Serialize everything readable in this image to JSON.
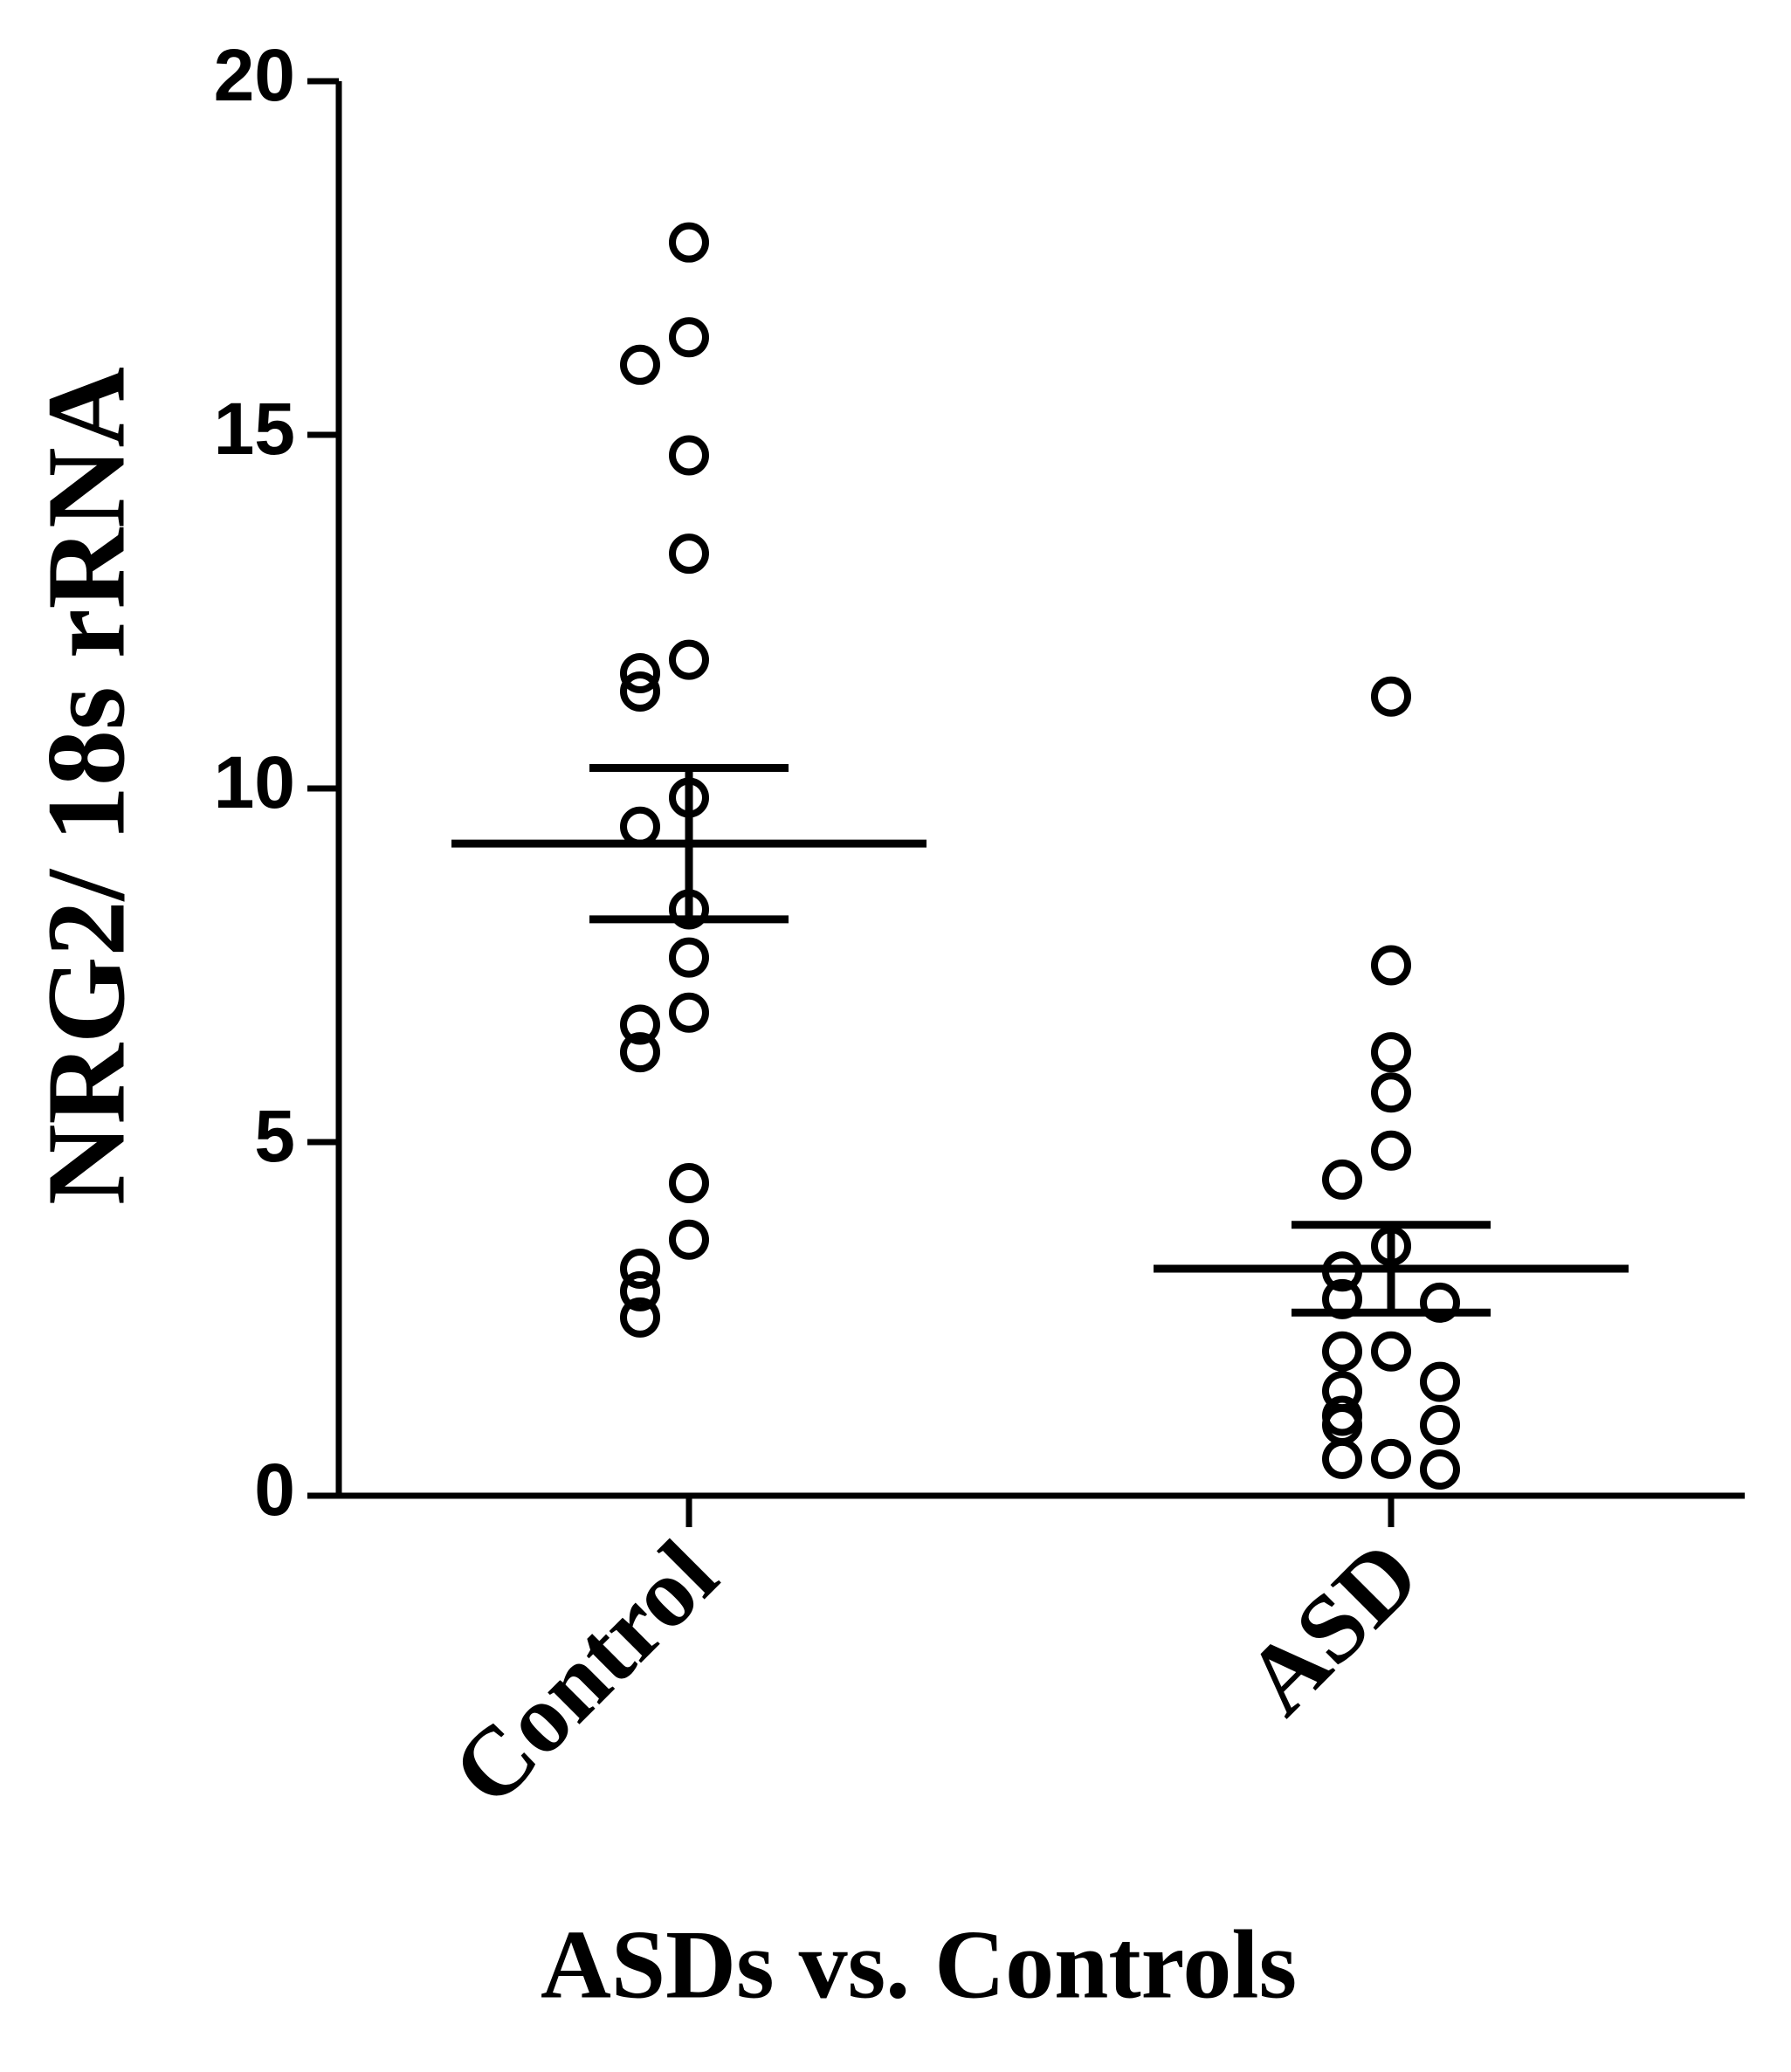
{
  "chart_data": {
    "type": "dot",
    "x_label": "ASDs vs. Controls",
    "y_label": "NRG2/ 18s rRNA",
    "categories": [
      "Control",
      "ASD"
    ],
    "values": [
      [
        17.72,
        16.38,
        15.99,
        14.71,
        13.32,
        11.82,
        11.63,
        11.37,
        9.87,
        9.46,
        8.29,
        7.61,
        6.83,
        6.66,
        6.27,
        4.42,
        3.62,
        3.21,
        2.89,
        2.52
      ],
      [
        11.3,
        7.5,
        6.27,
        5.7,
        4.88,
        4.47,
        3.53,
        3.17,
        2.78,
        2.73,
        2.04,
        2.04,
        1.61,
        1.48,
        1.13,
        1.0,
        1.0,
        0.52,
        0.52,
        0.37
      ]
    ],
    "means": [
      9.22,
      3.21
    ],
    "errors": [
      1.07,
      0.62
    ],
    "color": "#000000",
    "ylim": [
      0,
      20
    ],
    "yticks": [
      0,
      5,
      10,
      15,
      20
    ]
  }
}
